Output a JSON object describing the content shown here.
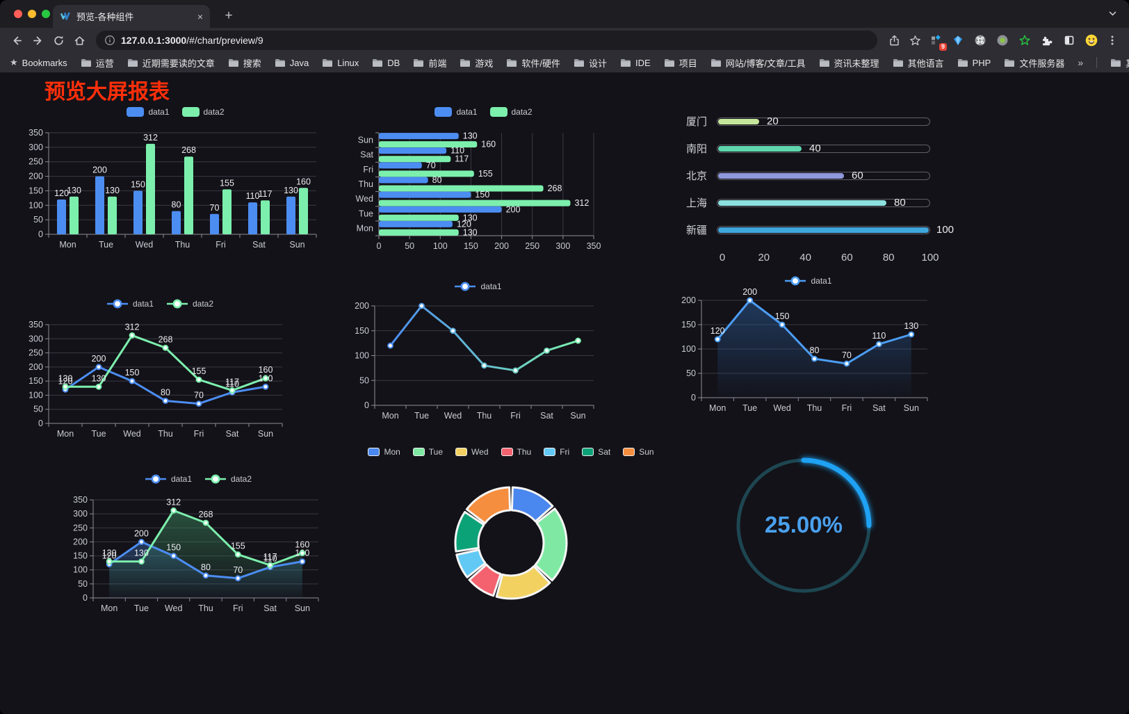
{
  "browser": {
    "tab_title": "预览-各种组件",
    "url_host": "127.0.0.1:3000",
    "url_path": "/#/chart/preview/9",
    "traffic_lights": [
      "#ff5f57",
      "#febc2e",
      "#28c840"
    ],
    "extensions_badge": "9",
    "glyphs": {
      "close_tab": "×",
      "new_tab": "+",
      "overflow": "»",
      "bookmarks_star": "★"
    },
    "bookmarks_bar": {
      "root_label": "Bookmarks",
      "folders": [
        "运营",
        "近期需要读的文章",
        "搜索",
        "Java",
        "Linux",
        "DB",
        "前端",
        "游戏",
        "软件/硬件",
        "设计",
        "IDE",
        "项目",
        "网站/博客/文章/工具",
        "资讯未整理",
        "其他语言",
        "PHP",
        "文件服务器"
      ],
      "other_label": "其他书签"
    }
  },
  "page": {
    "title": "预览大屏报表",
    "title_color": "#ff2f0a"
  },
  "chart_data": [
    {
      "id": "grouped-bar",
      "type": "bar",
      "categories": [
        "Mon",
        "Tue",
        "Wed",
        "Thu",
        "Fri",
        "Sat",
        "Sun"
      ],
      "series": [
        {
          "name": "data1",
          "color": "#4c8df2",
          "values": [
            120,
            200,
            150,
            80,
            70,
            110,
            130
          ]
        },
        {
          "name": "data2",
          "color": "#7cefad",
          "values": [
            130,
            130,
            312,
            268,
            155,
            117,
            160
          ]
        }
      ],
      "ylim": [
        0,
        350
      ],
      "ytick_step": 50,
      "grid": true,
      "legend_position": "top",
      "value_labels": true
    },
    {
      "id": "horizontal-bar",
      "type": "bar-horizontal",
      "categories": [
        "Mon",
        "Tue",
        "Wed",
        "Thu",
        "Fri",
        "Sat",
        "Sun"
      ],
      "display_order": "Sun-on-top",
      "series": [
        {
          "name": "data1",
          "color": "#4c8df2",
          "values": [
            120,
            200,
            150,
            80,
            70,
            110,
            130
          ]
        },
        {
          "name": "data2",
          "color": "#7cefad",
          "values": [
            130,
            130,
            312,
            268,
            155,
            117,
            160
          ]
        }
      ],
      "xlim": [
        0,
        350
      ],
      "xtick_step": 50,
      "grid": true,
      "legend_position": "top",
      "value_labels": true
    },
    {
      "id": "city-progress",
      "type": "progress-bars",
      "max": 100,
      "xticks": [
        0,
        20,
        40,
        60,
        80,
        100
      ],
      "items": [
        {
          "label": "厦门",
          "value": 20,
          "color": "#c6e79b"
        },
        {
          "label": "南阳",
          "value": 40,
          "color": "#5fd6ac"
        },
        {
          "label": "北京",
          "value": 60,
          "color": "#9099dc"
        },
        {
          "label": "上海",
          "value": 80,
          "color": "#8ce0de"
        },
        {
          "label": "新疆",
          "value": 100,
          "color": "#3fa7db"
        }
      ]
    },
    {
      "id": "dual-line",
      "type": "line",
      "categories": [
        "Mon",
        "Tue",
        "Wed",
        "Thu",
        "Fri",
        "Sat",
        "Sun"
      ],
      "series": [
        {
          "name": "data1",
          "color": "#4c8df2",
          "values": [
            120,
            200,
            150,
            80,
            70,
            110,
            130
          ]
        },
        {
          "name": "data2",
          "color": "#7cefad",
          "values": [
            130,
            130,
            312,
            268,
            155,
            117,
            160
          ]
        }
      ],
      "ylim": [
        0,
        350
      ],
      "ytick_step": 50,
      "marker": "hollow-circle",
      "legend_position": "top",
      "value_labels": true
    },
    {
      "id": "gradient-line",
      "type": "line",
      "categories": [
        "Mon",
        "Tue",
        "Wed",
        "Thu",
        "Fri",
        "Sat",
        "Sun"
      ],
      "series": [
        {
          "name": "data1",
          "color": "#4c8df2",
          "color_gradient": [
            "#4c8df2",
            "#7cefad"
          ],
          "values": [
            120,
            200,
            150,
            80,
            70,
            110,
            130
          ]
        }
      ],
      "ylim": [
        0,
        200
      ],
      "ytick_step": 50,
      "marker": "hollow-circle",
      "legend_position": "top",
      "value_labels": false
    },
    {
      "id": "single-area",
      "type": "area",
      "categories": [
        "Mon",
        "Tue",
        "Wed",
        "Thu",
        "Fri",
        "Sat",
        "Sun"
      ],
      "series": [
        {
          "name": "data1",
          "color": "#4c9df5",
          "area_color": "#2b5f9e",
          "values": [
            120,
            200,
            150,
            80,
            70,
            110,
            130
          ]
        }
      ],
      "ylim": [
        0,
        200
      ],
      "ytick_step": 50,
      "marker": "hollow-circle",
      "legend_position": "top",
      "value_labels": true
    },
    {
      "id": "dual-area",
      "type": "area",
      "categories": [
        "Mon",
        "Tue",
        "Wed",
        "Thu",
        "Fri",
        "Sat",
        "Sun"
      ],
      "series": [
        {
          "name": "data1",
          "color": "#4c8df2",
          "area_color": "#35649e",
          "values": [
            120,
            200,
            150,
            80,
            70,
            110,
            130
          ]
        },
        {
          "name": "data2",
          "color": "#7cefad",
          "area_color": "#3f8f63",
          "values": [
            130,
            130,
            312,
            268,
            155,
            117,
            160
          ]
        }
      ],
      "ylim": [
        0,
        350
      ],
      "ytick_step": 50,
      "marker": "hollow-circle",
      "legend_position": "top",
      "value_labels": true
    },
    {
      "id": "weekday-donut",
      "type": "pie",
      "inner_radius_ratio": 0.59,
      "legend_position": "top",
      "items": [
        {
          "label": "Mon",
          "value": 120,
          "color": "#4a87ee"
        },
        {
          "label": "Tue",
          "value": 200,
          "color": "#7fe9a4"
        },
        {
          "label": "Wed",
          "value": 150,
          "color": "#f2d160"
        },
        {
          "label": "Thu",
          "value": 80,
          "color": "#f4626f"
        },
        {
          "label": "Fri",
          "value": 70,
          "color": "#62c9f5"
        },
        {
          "label": "Sat",
          "value": 110,
          "color": "#0ca277"
        },
        {
          "label": "Sun",
          "value": 130,
          "color": "#f68e3f"
        }
      ]
    },
    {
      "id": "percent-gauge",
      "type": "gauge",
      "value": 25,
      "max": 100,
      "center_label": "25.00%",
      "progress_color": "#1fa2f4",
      "track_color": "#1d4651",
      "label_color": "#4aa0ee"
    }
  ]
}
